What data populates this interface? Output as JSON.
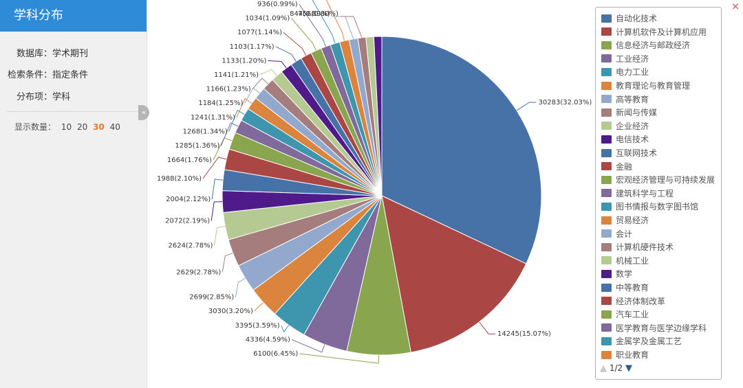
{
  "sidebar": {
    "title": "学科分布",
    "rows": [
      {
        "key": "数据库：",
        "value": "学术期刊"
      },
      {
        "key": "检索条件：",
        "value": "指定条件"
      },
      {
        "key": "分布项：",
        "value": "学科"
      }
    ],
    "count_label": "显示数量：",
    "count_options": [
      "10",
      "20",
      "30",
      "40"
    ],
    "count_selected": "30",
    "collapse_icon": "«"
  },
  "close_icon": "×",
  "legend": {
    "pager_up": "▲",
    "pager_text": "1/2",
    "pager_down": "▼",
    "colors": {
      "pager_up": "#c8c8c8",
      "pager_down": "#2c5a8c"
    }
  },
  "chart_data": {
    "type": "pie",
    "start_angle_deg": 90,
    "direction": "clockwise",
    "legend_position": "right",
    "slices": [
      {
        "name": "自动化技术",
        "value": 30283,
        "label": "30283(32.03%)",
        "color": "#4672a8"
      },
      {
        "name": "计算机软件及计算机应用",
        "value": 14245,
        "label": "14245(15.07%)",
        "color": "#aa4643"
      },
      {
        "name": "信息经济与邮政经济",
        "value": 6100,
        "label": "6100(6.45%)",
        "color": "#89a54e"
      },
      {
        "name": "工业经济",
        "value": 4336,
        "label": "4336(4.59%)",
        "color": "#80699b"
      },
      {
        "name": "电力工业",
        "value": 3395,
        "label": "3395(3.59%)",
        "color": "#3d96ae"
      },
      {
        "name": "教育理论与教育管理",
        "value": 3030,
        "label": "3030(3.20%)",
        "color": "#db843d"
      },
      {
        "name": "高等教育",
        "value": 2699,
        "label": "2699(2.85%)",
        "color": "#92a8cd"
      },
      {
        "name": "新闻与传媒",
        "value": 2629,
        "label": "2629(2.78%)",
        "color": "#a47d7c"
      },
      {
        "name": "企业经济",
        "value": 2624,
        "label": "2624(2.78%)",
        "color": "#b5ca92"
      },
      {
        "name": "电信技术",
        "value": 2072,
        "label": "2072(2.19%)",
        "color": "#4f1a8a"
      },
      {
        "name": "互联网技术",
        "value": 2004,
        "label": "2004(2.12%)",
        "color": "#4672a8"
      },
      {
        "name": "金融",
        "value": 1988,
        "label": "1988(2.10%)",
        "color": "#aa4643"
      },
      {
        "name": "宏观经济管理与可持续发展",
        "value": 1664,
        "label": "1664(1.76%)",
        "color": "#89a54e"
      },
      {
        "name": "建筑科学与工程",
        "value": 1285,
        "label": "1285(1.36%)",
        "color": "#80699b"
      },
      {
        "name": "图书情报与数字图书馆",
        "value": 1268,
        "label": "1268(1.34%)",
        "color": "#3d96ae"
      },
      {
        "name": "贸易经济",
        "value": 1241,
        "label": "1241(1.31%)",
        "color": "#db843d"
      },
      {
        "name": "会计",
        "value": 1184,
        "label": "1184(1.25%)",
        "color": "#92a8cd"
      },
      {
        "name": "计算机硬件技术",
        "value": 1166,
        "label": "1166(1.23%)",
        "color": "#a47d7c"
      },
      {
        "name": "机械工业",
        "value": 1141,
        "label": "1141(1.21%)",
        "color": "#b5ca92"
      },
      {
        "name": "数学",
        "value": 1133,
        "label": "1133(1.20%)",
        "color": "#4f1a8a"
      },
      {
        "name": "中等教育",
        "value": 1103,
        "label": "1103(1.17%)",
        "color": "#4672a8"
      },
      {
        "name": "经济体制改革",
        "value": 1077,
        "label": "1077(1.14%)",
        "color": "#aa4643"
      },
      {
        "name": "汽车工业",
        "value": 1034,
        "label": "1034(1.09%)",
        "color": "#89a54e"
      },
      {
        "name": "医学教育与医学边缘学科",
        "value": 936,
        "label": "936(0.99%)",
        "color": "#80699b"
      },
      {
        "name": "金属学及金属工艺",
        "value": 916,
        "label": "916(0.97%)",
        "color": "#3d96ae"
      },
      {
        "name": "职业教育",
        "value": 913,
        "label": "913(0.97%)",
        "color": "#db843d"
      },
      {
        "value": 844,
        "label": "844(0.89%)",
        "color": "#92a8cd"
      },
      {
        "value": 756,
        "label": "756(0.80%)",
        "color": "#a47d7c"
      },
      {
        "value": 756,
        "color": "#b5ca92"
      },
      {
        "value": 756,
        "color": "#4f1a8a"
      }
    ]
  }
}
